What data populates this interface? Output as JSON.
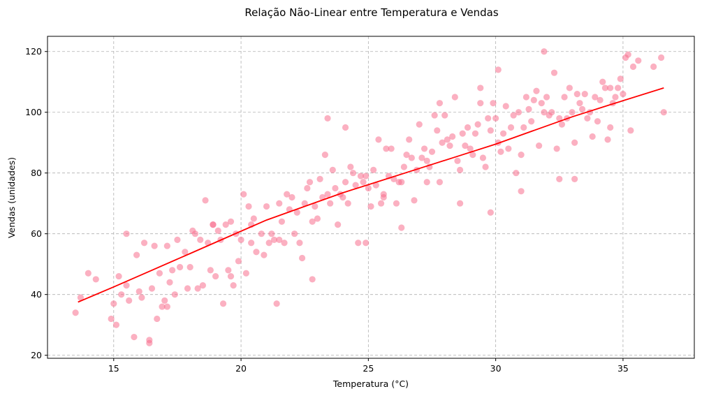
{
  "chart_data": {
    "type": "scatter",
    "title": "Relação Não-Linear entre Temperatura e Vendas",
    "xlabel": "Temperatura (°C)",
    "ylabel": "Vendas (unidades)",
    "xlim": [
      12.4,
      37.8
    ],
    "ylim": [
      19,
      125
    ],
    "xticks": [
      15,
      20,
      25,
      30,
      35
    ],
    "yticks": [
      20,
      40,
      60,
      80,
      100,
      120
    ],
    "grid": true,
    "colors": {
      "points": "#f7708e",
      "trend": "#ff0000"
    },
    "series": [
      {
        "type": "scatter",
        "x": [
          13.5,
          13.7,
          14.0,
          14.3,
          14.9,
          15.0,
          15.1,
          15.2,
          15.3,
          15.5,
          15.6,
          15.8,
          15.9,
          16.0,
          16.1,
          16.2,
          16.4,
          16.5,
          16.6,
          16.7,
          16.8,
          16.9,
          17.0,
          17.1,
          17.2,
          17.3,
          17.4,
          17.5,
          17.6,
          17.8,
          17.9,
          18.0,
          18.1,
          18.2,
          18.3,
          18.4,
          18.5,
          18.6,
          18.7,
          18.8,
          18.9,
          19.0,
          19.1,
          19.2,
          19.3,
          19.4,
          19.5,
          19.6,
          19.7,
          19.8,
          19.9,
          20.0,
          20.1,
          20.2,
          20.3,
          20.4,
          20.5,
          20.6,
          20.8,
          20.9,
          21.0,
          21.1,
          21.2,
          21.3,
          21.4,
          21.5,
          21.6,
          21.7,
          21.8,
          21.9,
          22.0,
          22.1,
          22.2,
          22.3,
          22.4,
          22.5,
          22.6,
          22.7,
          22.8,
          22.9,
          23.0,
          23.1,
          23.2,
          23.3,
          23.4,
          23.5,
          23.6,
          23.7,
          23.8,
          23.9,
          24.0,
          24.1,
          24.2,
          24.3,
          24.4,
          24.5,
          24.6,
          24.7,
          24.8,
          24.9,
          25.0,
          25.1,
          25.2,
          25.3,
          25.4,
          25.5,
          25.6,
          25.7,
          25.8,
          25.9,
          26.0,
          26.1,
          26.2,
          26.3,
          26.4,
          26.5,
          26.6,
          26.7,
          26.8,
          26.9,
          27.0,
          27.1,
          27.2,
          27.3,
          27.4,
          27.5,
          27.6,
          27.7,
          27.8,
          27.9,
          28.0,
          28.1,
          28.2,
          28.3,
          28.4,
          28.5,
          28.6,
          28.7,
          28.8,
          28.9,
          29.0,
          29.1,
          29.2,
          29.3,
          29.4,
          29.5,
          29.6,
          29.7,
          29.8,
          29.9,
          30.0,
          30.1,
          30.2,
          30.3,
          30.4,
          30.5,
          30.6,
          30.7,
          30.8,
          30.9,
          31.0,
          31.1,
          31.2,
          31.3,
          31.4,
          31.5,
          31.6,
          31.7,
          31.8,
          31.9,
          32.0,
          32.1,
          32.2,
          32.3,
          32.4,
          32.5,
          32.6,
          32.7,
          32.8,
          32.9,
          33.0,
          33.1,
          33.2,
          33.3,
          33.4,
          33.5,
          33.6,
          33.7,
          33.8,
          33.9,
          34.0,
          34.1,
          34.2,
          34.3,
          34.4,
          34.5,
          34.6,
          34.7,
          34.8,
          34.9,
          35.0,
          35.2,
          35.4,
          35.6,
          36.2,
          36.5,
          36.6,
          16.4,
          17.1,
          20.4,
          21.5,
          22.8,
          24.1,
          25.6,
          26.3,
          27.8,
          28.6,
          29.4,
          30.1,
          31.0,
          31.9,
          33.1,
          34.5,
          35.3,
          15.5,
          18.9,
          19.6,
          23.4,
          24.9,
          27.3,
          29.8,
          32.5,
          35.1
        ],
        "y": [
          34,
          39,
          47,
          45,
          32,
          37,
          30,
          46,
          40,
          43,
          38,
          26,
          53,
          41,
          39,
          57,
          24,
          42,
          56,
          32,
          47,
          36,
          38,
          56,
          44,
          48,
          40,
          58,
          49,
          54,
          42,
          49,
          61,
          60,
          42,
          58,
          43,
          71,
          57,
          48,
          63,
          46,
          61,
          58,
          37,
          63,
          48,
          64,
          43,
          60,
          51,
          58,
          73,
          47,
          69,
          57,
          65,
          54,
          60,
          53,
          69,
          57,
          60,
          58,
          37,
          58,
          64,
          57,
          73,
          68,
          72,
          60,
          67,
          57,
          52,
          70,
          75,
          77,
          64,
          69,
          65,
          78,
          72,
          86,
          73,
          70,
          81,
          75,
          63,
          73,
          72,
          77,
          70,
          82,
          80,
          76,
          57,
          79,
          77,
          79,
          75,
          69,
          81,
          76,
          91,
          70,
          73,
          88,
          79,
          88,
          78,
          70,
          77,
          77,
          82,
          86,
          91,
          85,
          71,
          81,
          96,
          85,
          88,
          77,
          82,
          87,
          99,
          94,
          77,
          90,
          99,
          91,
          89,
          92,
          105,
          84,
          81,
          93,
          89,
          95,
          88,
          86,
          93,
          96,
          103,
          85,
          82,
          98,
          94,
          103,
          98,
          90,
          87,
          93,
          102,
          88,
          95,
          99,
          80,
          100,
          86,
          95,
          105,
          101,
          97,
          104,
          107,
          89,
          103,
          100,
          105,
          99,
          100,
          113,
          88,
          98,
          96,
          105,
          98,
          108,
          100,
          78,
          106,
          103,
          101,
          106,
          98,
          100,
          92,
          105,
          97,
          104,
          110,
          108,
          91,
          108,
          103,
          105,
          108,
          111,
          106,
          119,
          115,
          117,
          115,
          118,
          100,
          25,
          36,
          63,
          70,
          45,
          95,
          72,
          62,
          103,
          70,
          108,
          114,
          74,
          120,
          90,
          95,
          94,
          60,
          63,
          46,
          98,
          57,
          84,
          67,
          78,
          118
        ],
        "name": ""
      },
      {
        "type": "line",
        "x": [
          13.6,
          15.0,
          16.5,
          18.0,
          19.5,
          21.0,
          22.5,
          24.0,
          25.5,
          27.0,
          28.5,
          30.0,
          31.5,
          33.0,
          34.5,
          36.6
        ],
        "y": [
          37.5,
          42.5,
          48.0,
          53.5,
          59.0,
          64.5,
          69.0,
          73.5,
          77.5,
          81.5,
          85.5,
          89.5,
          94.0,
          98.5,
          102.5,
          108.0
        ],
        "name": ""
      }
    ]
  }
}
